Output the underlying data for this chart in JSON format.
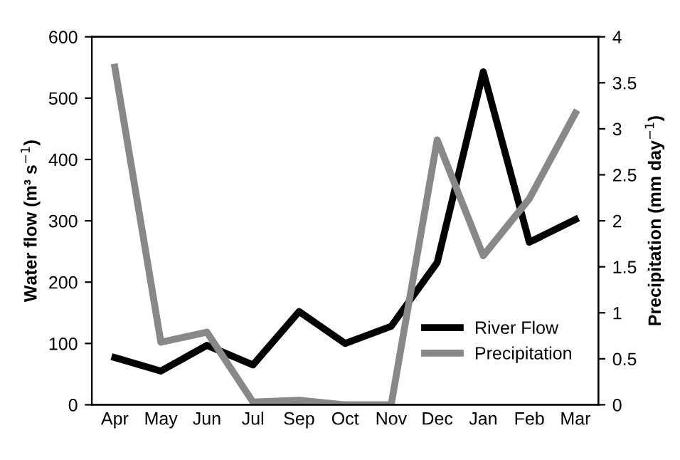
{
  "chart_data": {
    "type": "line",
    "categories": [
      "Apr",
      "May",
      "Jun",
      "Jul",
      "Sep",
      "Oct",
      "Nov",
      "Dec",
      "Jan",
      "Feb",
      "Mar"
    ],
    "series": [
      {
        "name": "River Flow",
        "color": "#000000",
        "values": [
          77,
          55,
          97,
          65,
          152,
          100,
          128,
          232,
          543,
          265,
          302
        ]
      },
      {
        "name": "Precipitation",
        "color": "#888888",
        "axis": "y2",
        "values": [
          3.67,
          0.68,
          0.79,
          0.03,
          0.05,
          0,
          0,
          2.88,
          1.62,
          2.24,
          3.17
        ]
      }
    ],
    "ylabel": "Water flow (m³ s$^{−1}$)",
    "y2label": "Precipitation (mm day$^{−1}$)",
    "ylim": [
      0,
      600
    ],
    "yticks": [
      0,
      100,
      200,
      300,
      400,
      500,
      600
    ],
    "y2lim": [
      0,
      4
    ],
    "y2ticks": [
      0,
      0.5,
      1,
      1.5,
      2,
      2.5,
      3,
      3.5,
      4
    ],
    "grid": false,
    "legend": "bottom right",
    "marker": "none",
    "line_style": "solid"
  }
}
